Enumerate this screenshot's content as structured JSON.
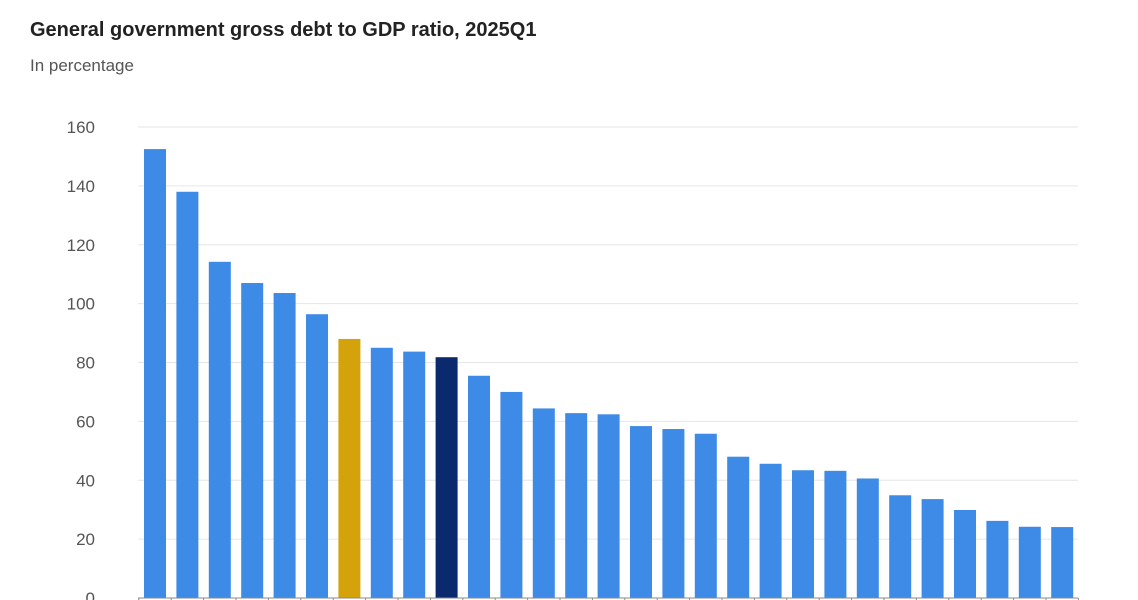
{
  "chart_data": {
    "type": "bar",
    "title": "General government gross debt to GDP ratio, 2025Q1",
    "subtitle": "In percentage",
    "xlabel": "",
    "ylabel": "",
    "ylim": [
      0,
      160
    ],
    "yticks": [
      0,
      20,
      40,
      60,
      80,
      100,
      120,
      140,
      160
    ],
    "grid": true,
    "legend": "none",
    "values": [
      152.5,
      138,
      114.2,
      107,
      103.6,
      96.4,
      88,
      85,
      83.7,
      81.8,
      75.5,
      70,
      64.4,
      62.8,
      62.4,
      58.4,
      57.4,
      55.8,
      48,
      45.6,
      43.4,
      43.2,
      40.6,
      34.9,
      33.6,
      29.9,
      26.2,
      24.2,
      24.1
    ],
    "colors": {
      "default": "#3d8be6",
      "highlight_gold": "#d4a20a",
      "highlight_navy": "#0b2a6e",
      "grid": "#e6e6e6",
      "axis": "#8a8a8a",
      "tick_text": "#555555"
    },
    "highlights": [
      {
        "index": 6,
        "color_key": "highlight_gold"
      },
      {
        "index": 9,
        "color_key": "highlight_navy"
      }
    ]
  }
}
